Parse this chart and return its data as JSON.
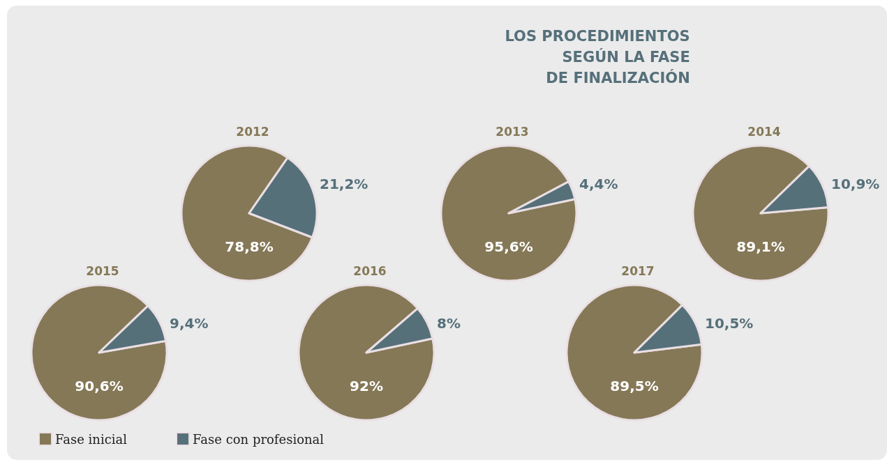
{
  "chart_data": {
    "type": "pie",
    "title": "LOS PROCEDIMIENTOS\nSEGÚN LA FASE\nDE FINALIZACIÓN",
    "categories": [
      "Fase inicial",
      "Fase con profesional"
    ],
    "colors": [
      "#857857",
      "#56707a"
    ],
    "series": [
      {
        "name": "2012",
        "values": [
          78.8,
          21.2
        ],
        "value_labels": [
          "78,8%",
          "21,2%"
        ]
      },
      {
        "name": "2013",
        "values": [
          95.6,
          4.4
        ],
        "value_labels": [
          "95,6%",
          "4,4%"
        ]
      },
      {
        "name": "2014",
        "values": [
          89.1,
          10.9
        ],
        "value_labels": [
          "89,1%",
          "10,9%"
        ]
      },
      {
        "name": "2015",
        "values": [
          90.6,
          9.4
        ],
        "value_labels": [
          "90,6%",
          "9,4%"
        ]
      },
      {
        "name": "2016",
        "values": [
          92,
          8
        ],
        "value_labels": [
          "92%",
          "8%"
        ]
      },
      {
        "name": "2017",
        "values": [
          89.5,
          10.5
        ],
        "value_labels": [
          "89,5%",
          "10,5%"
        ]
      }
    ],
    "legend": "bottom left"
  }
}
